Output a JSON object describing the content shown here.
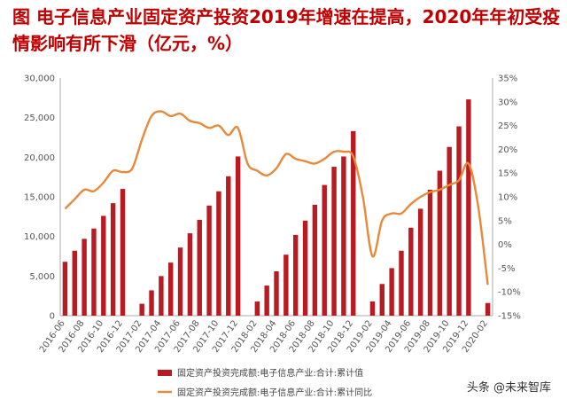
{
  "title": "图  电子信息产业固定资产投资2019年增速在提高，2020年年初受疫情影响有所下滑（亿元，%）",
  "watermark": "头条 @未来智库",
  "colors": {
    "bar": "#b81c22",
    "line": "#e8893a",
    "axis": "#aaaaaa",
    "tick_text": "#555555"
  },
  "chart_data": {
    "type": "bar+line",
    "categories": [
      "2016-06",
      "2016-07",
      "2016-08",
      "2016-09",
      "2016-10",
      "2016-11",
      "2016-12",
      "2017-01",
      "2017-02",
      "2017-03",
      "2017-04",
      "2017-05",
      "2017-06",
      "2017-07",
      "2017-08",
      "2017-09",
      "2017-10",
      "2017-11",
      "2017-12",
      "2018-01",
      "2018-02",
      "2018-03",
      "2018-04",
      "2018-05",
      "2018-06",
      "2018-07",
      "2018-08",
      "2018-09",
      "2018-10",
      "2018-11",
      "2018-12",
      "2019-01",
      "2019-02",
      "2019-03",
      "2019-04",
      "2019-05",
      "2019-06",
      "2019-07",
      "2019-08",
      "2019-09",
      "2019-10",
      "2019-11",
      "2019-12",
      "2020-01",
      "2020-02"
    ],
    "x_tick_labels": [
      "2016-06",
      "2016-08",
      "2016-10",
      "2016-12",
      "2017-02",
      "2017-04",
      "2017-06",
      "2017-08",
      "2017-10",
      "2017-12",
      "2018-02",
      "2018-04",
      "2018-06",
      "2018-08",
      "2018-10",
      "2018-12",
      "2019-02",
      "2019-04",
      "2019-06",
      "2019-08",
      "2019-10",
      "2019-12",
      "2020-02"
    ],
    "series": [
      {
        "name": "固定资产投资完成额:电子信息产业:合计:累计值",
        "type": "bar",
        "axis": "left",
        "values": [
          6800,
          8200,
          9700,
          11000,
          12600,
          14200,
          16000,
          null,
          1500,
          3200,
          5000,
          6700,
          8600,
          10400,
          12100,
          13900,
          15700,
          17600,
          20100,
          null,
          1800,
          3800,
          5600,
          7700,
          10200,
          12000,
          14000,
          16500,
          18800,
          20100,
          23300,
          null,
          1800,
          4000,
          6000,
          8200,
          11100,
          13500,
          15900,
          18300,
          21300,
          23900,
          27300,
          null,
          1600
        ]
      },
      {
        "name": "固定资产投资完成额:电子信息产业:合计:累计同比",
        "type": "line",
        "axis": "right",
        "values": [
          7.5,
          9.5,
          11.5,
          11.2,
          13.0,
          15.5,
          15.2,
          16.0,
          22.0,
          27.0,
          28.0,
          27.0,
          27.5,
          26.0,
          25.5,
          24.5,
          25.0,
          23.0,
          24.5,
          17.0,
          15.5,
          14.5,
          16.0,
          19.0,
          18.0,
          17.5,
          17.0,
          18.0,
          19.5,
          19.5,
          18.5,
          10.0,
          -2.5,
          5.0,
          6.5,
          6.5,
          8.5,
          10.0,
          11.0,
          11.5,
          12.5,
          13.5,
          17.0,
          8.0,
          -8.5
        ]
      }
    ],
    "y_left": {
      "min": 0,
      "max": 30000,
      "ticks": [
        0,
        5000,
        10000,
        15000,
        20000,
        25000,
        30000
      ],
      "tick_labels": [
        "0",
        "5,000",
        "10,000",
        "15,000",
        "20,000",
        "25,000",
        "30,000"
      ]
    },
    "y_right": {
      "min": -15,
      "max": 35,
      "ticks": [
        -15,
        -10,
        -5,
        0,
        5,
        10,
        15,
        20,
        25,
        30,
        35
      ],
      "tick_labels": [
        "-15%",
        "-10%",
        "-5%",
        "0%",
        "5%",
        "10%",
        "15%",
        "20%",
        "25%",
        "30%",
        "35%"
      ]
    },
    "grid": false,
    "legend_position": "bottom"
  }
}
